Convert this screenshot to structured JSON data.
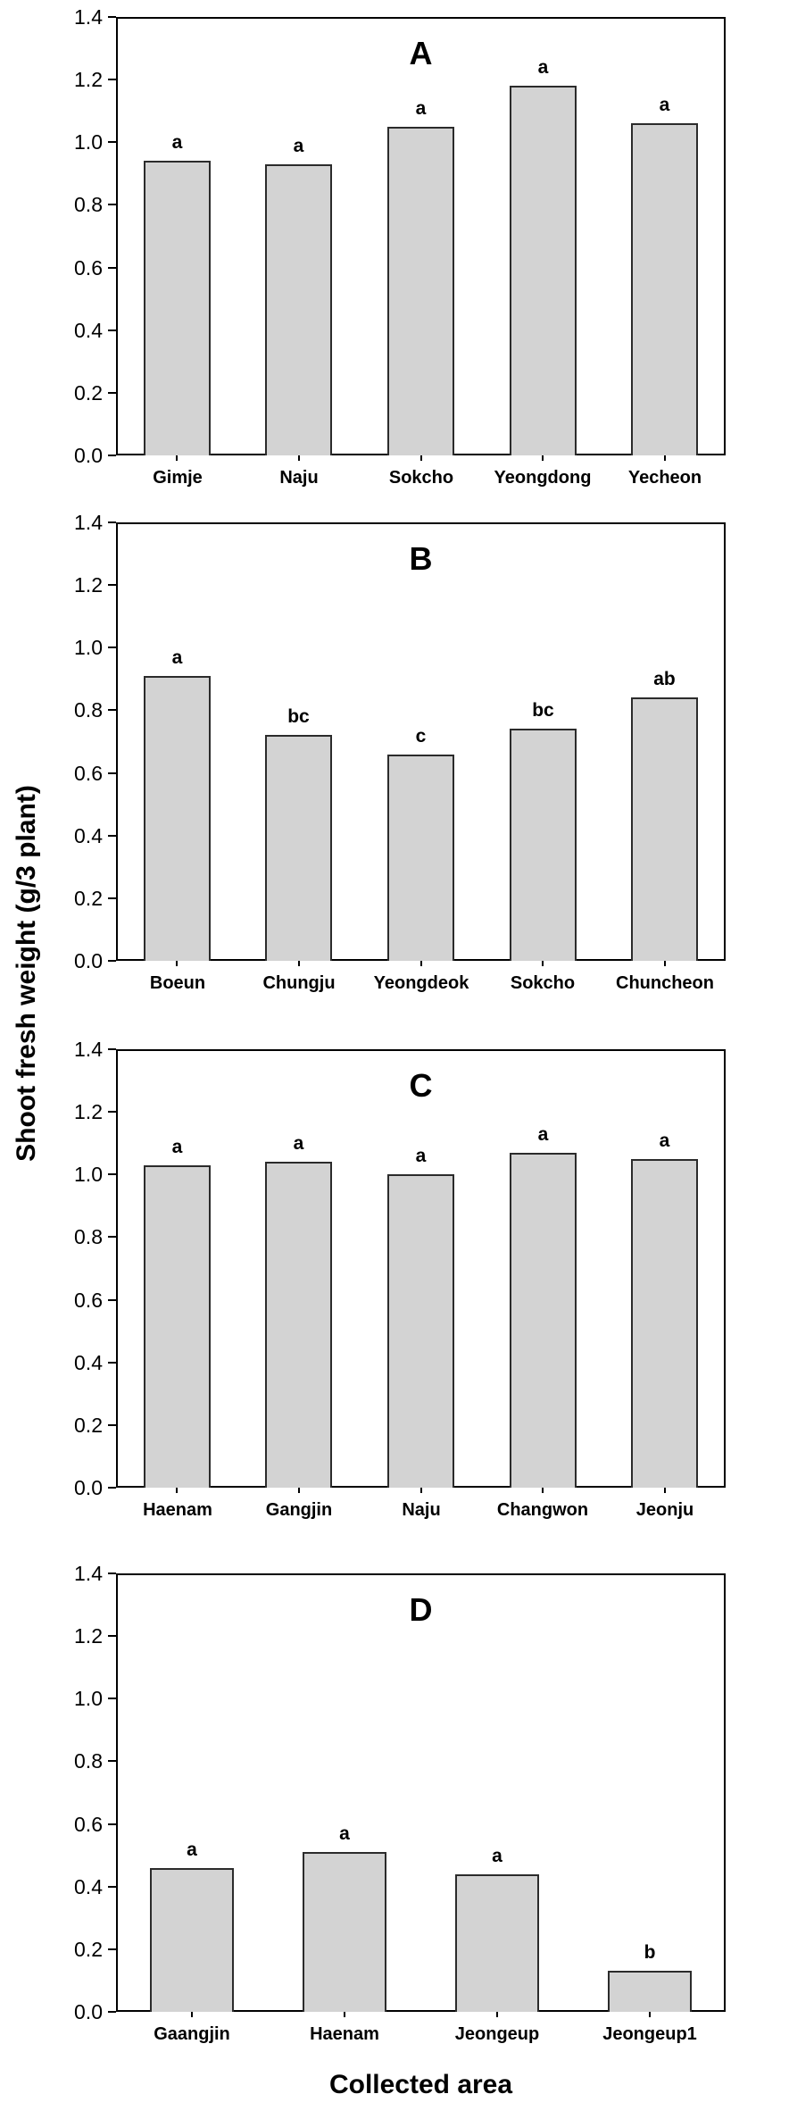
{
  "figure": {
    "ylabel": "Shoot fresh weight (g/3 plant)",
    "xlabel": "Collected area",
    "ytick_labels": [
      "1.4",
      "1.2",
      "1.0",
      "0.8",
      "0.6",
      "0.4",
      "0.2",
      "0.0"
    ],
    "colors": {
      "bar_fill": "#d3d3d3",
      "bar_border": "#2b2b2b",
      "axis": "#000000",
      "background": "#ffffff",
      "text": "#000000"
    }
  },
  "chart_data": [
    {
      "type": "bar",
      "panel_label": "A",
      "categories": [
        "Gimje",
        "Naju",
        "Sokcho",
        "Yeongdong",
        "Yecheon"
      ],
      "values": [
        0.94,
        0.93,
        1.05,
        1.18,
        1.06
      ],
      "sig_letters": [
        "a",
        "a",
        "a",
        "a",
        "a"
      ],
      "ylim": [
        0,
        1.4
      ],
      "ytick_step": 0.2,
      "grid": false,
      "legend": "none"
    },
    {
      "type": "bar",
      "panel_label": "B",
      "categories": [
        "Boeun",
        "Chungju",
        "Yeongdeok",
        "Sokcho",
        "Chuncheon"
      ],
      "values": [
        0.91,
        0.72,
        0.66,
        0.74,
        0.84
      ],
      "sig_letters": [
        "a",
        "bc",
        "c",
        "bc",
        "ab"
      ],
      "ylim": [
        0,
        1.4
      ],
      "ytick_step": 0.2,
      "grid": false,
      "legend": "none"
    },
    {
      "type": "bar",
      "panel_label": "C",
      "categories": [
        "Haenam",
        "Gangjin",
        "Naju",
        "Changwon",
        "Jeonju"
      ],
      "values": [
        1.03,
        1.04,
        1.0,
        1.07,
        1.05
      ],
      "sig_letters": [
        "a",
        "a",
        "a",
        "a",
        "a"
      ],
      "ylim": [
        0,
        1.4
      ],
      "ytick_step": 0.2,
      "grid": false,
      "legend": "none"
    },
    {
      "type": "bar",
      "panel_label": "D",
      "categories": [
        "Gaangjin",
        "Haenam",
        "Jeongeup",
        "Jeongeup1"
      ],
      "values": [
        0.46,
        0.51,
        0.44,
        0.13
      ],
      "sig_letters": [
        "a",
        "a",
        "a",
        "b"
      ],
      "ylim": [
        0,
        1.4
      ],
      "ytick_step": 0.2,
      "grid": false,
      "legend": "none"
    }
  ]
}
